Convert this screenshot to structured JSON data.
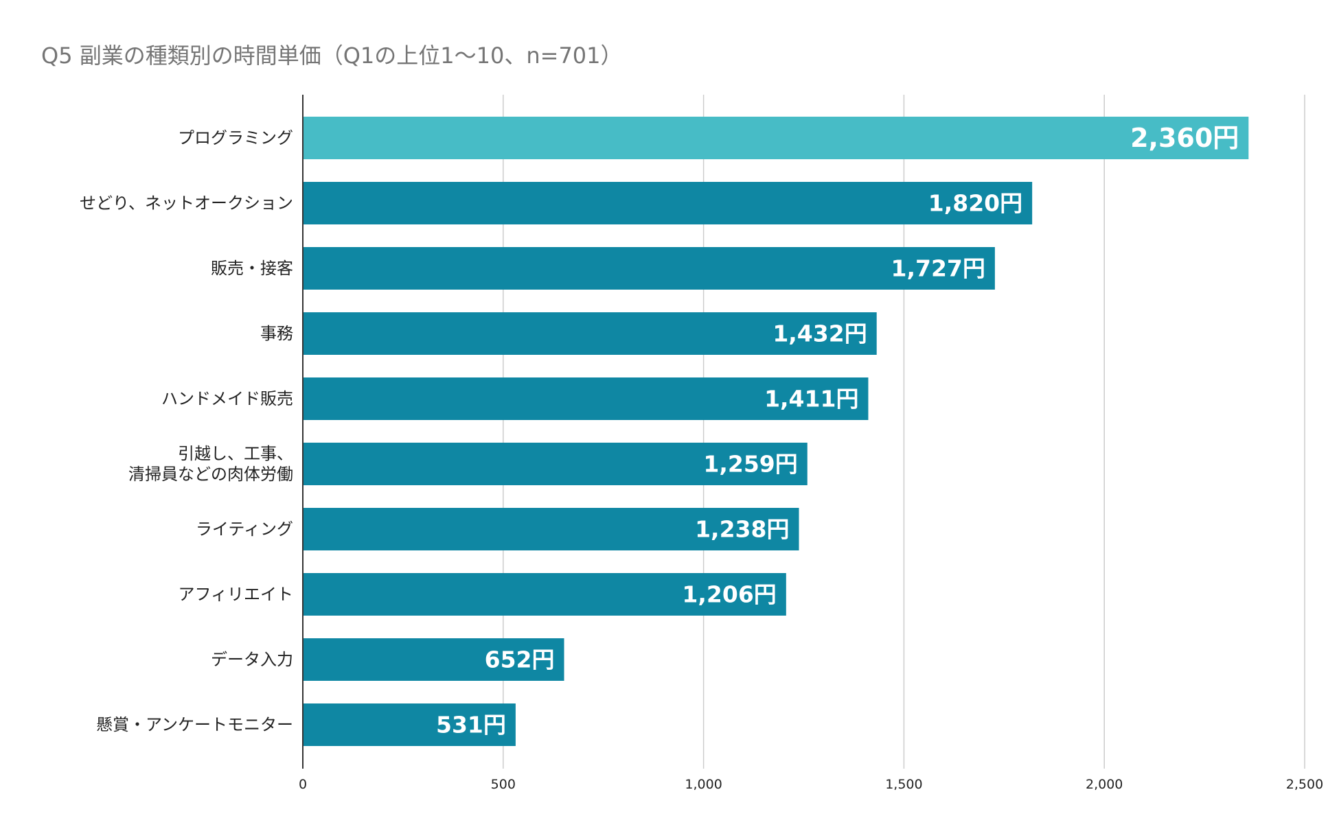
{
  "chart_data": {
    "type": "bar",
    "orientation": "horizontal",
    "title": "Q5 副業の種類別の時間単価（Q1の上位1〜10、n=701）",
    "categories": [
      [
        "プログラミング"
      ],
      [
        "せどり、ネットオークション"
      ],
      [
        "販売・接客"
      ],
      [
        "事務"
      ],
      [
        "ハンドメイド販売"
      ],
      [
        "引越し、工事、",
        "清掃員などの肉体労働"
      ],
      [
        "ライティング"
      ],
      [
        "アフィリエイト"
      ],
      [
        "データ入力"
      ],
      [
        "懸賞・アンケートモニター"
      ]
    ],
    "values": [
      2360,
      1820,
      1727,
      1432,
      1411,
      1259,
      1238,
      1206,
      652,
      531
    ],
    "value_labels": [
      "2,360円",
      "1,820円",
      "1,727円",
      "1,432円",
      "1,411円",
      "1,259円",
      "1,238円",
      "1,206円",
      "652円",
      "531円"
    ],
    "x_ticks": [
      0,
      500,
      1000,
      1500,
      2000,
      2500
    ],
    "x_tick_labels": [
      "0",
      "500",
      "1,000",
      "1,500",
      "2,000",
      "2,500"
    ],
    "xlim": [
      0,
      2500
    ],
    "grid": true,
    "colors": {
      "highlight": "#47bcc6",
      "bar": "#0f87a3",
      "grid": "#cccccc",
      "axis": "#333333",
      "title": "#757575"
    },
    "xlabel": "",
    "ylabel": ""
  }
}
